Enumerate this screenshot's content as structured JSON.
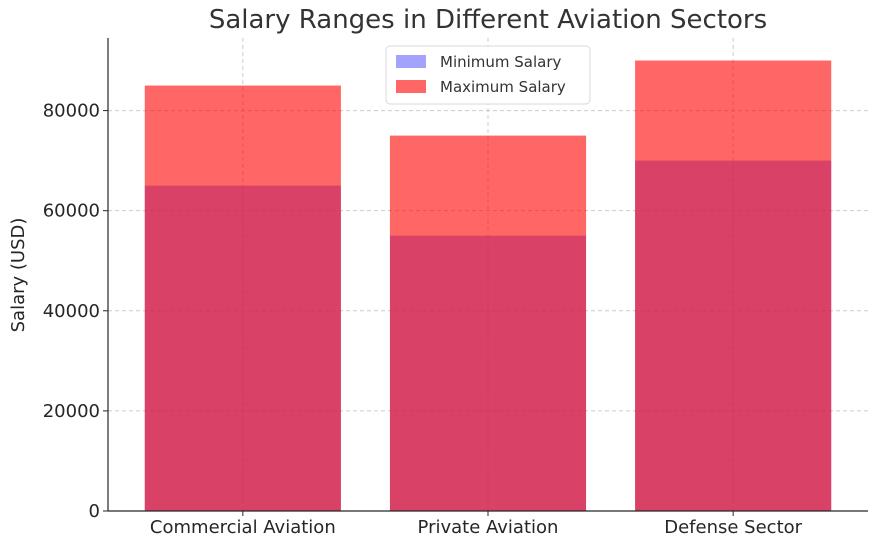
{
  "chart_data": {
    "type": "bar",
    "title": "Salary Ranges in Different Aviation Sectors",
    "xlabel": "",
    "ylabel": "Salary (USD)",
    "categories": [
      "Commercial Aviation",
      "Private Aviation",
      "Defense Sector"
    ],
    "series": [
      {
        "name": "Minimum Salary",
        "values": [
          65000,
          55000,
          70000
        ],
        "color": "#6666ff",
        "alpha": 0.6
      },
      {
        "name": "Maximum Salary",
        "values": [
          85000,
          75000,
          90000
        ],
        "color": "#ff0000",
        "alpha": 0.6
      }
    ],
    "ylim": [
      0,
      94500
    ],
    "yticks": [
      0,
      20000,
      40000,
      60000,
      80000
    ],
    "ytick_labels": [
      "0",
      "20000",
      "40000",
      "60000",
      "80000"
    ],
    "grid": true,
    "legend_position": "top-center",
    "overlay_color": "#c02863",
    "max_color": "#ff6666"
  }
}
